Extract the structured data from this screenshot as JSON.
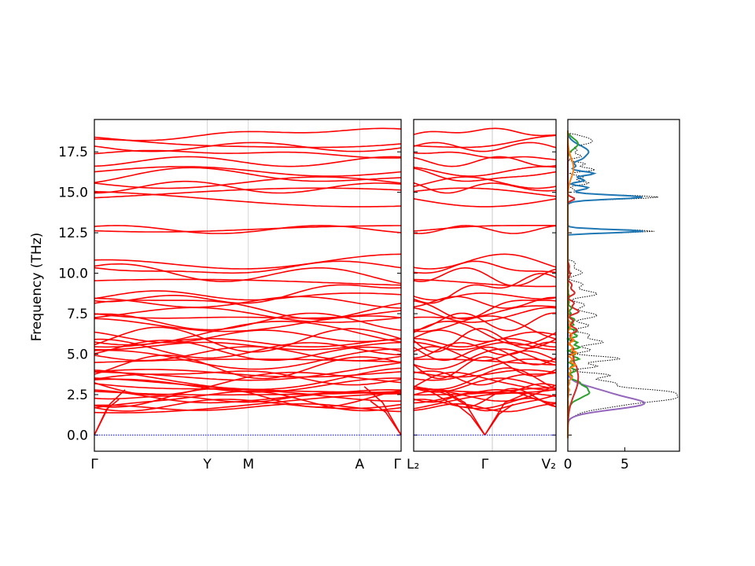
{
  "figure": {
    "ylabel": "Frequency (THz)"
  },
  "chart_data": {
    "type": "line",
    "ylabel": "Frequency (THz)",
    "ylim": [
      -1.0,
      19.5
    ],
    "yticks": [
      "0.0",
      "2.5",
      "5.0",
      "7.5",
      "10.0",
      "12.5",
      "15.0",
      "17.5"
    ],
    "ytick_values": [
      0,
      2.5,
      5.0,
      7.5,
      10.0,
      12.5,
      15.0,
      17.5
    ],
    "band_color": "#ff0000",
    "zero_line_color": "#0000ff",
    "panels": [
      {
        "id": "path1",
        "xticks": [
          "Γ",
          "Y",
          "M",
          "A",
          "Γ"
        ],
        "xtick_positions": [
          0,
          0.368,
          0.502,
          0.865,
          1.0
        ],
        "note": "dense phonon band structure"
      },
      {
        "id": "path2",
        "xticks": [
          "L₂",
          "Γ",
          "V₂"
        ],
        "xtick_positions": [
          0,
          0.5,
          1.0
        ]
      },
      {
        "id": "dos",
        "type": "density",
        "xticks": [
          "0",
          "5"
        ],
        "xtick_values": [
          0,
          5
        ],
        "xlim": [
          0,
          9.8
        ],
        "series_colors": [
          "#1f77b4",
          "#ff7f0e",
          "#2ca02c",
          "#d62728",
          "#9467bd",
          "#000000"
        ]
      }
    ]
  }
}
